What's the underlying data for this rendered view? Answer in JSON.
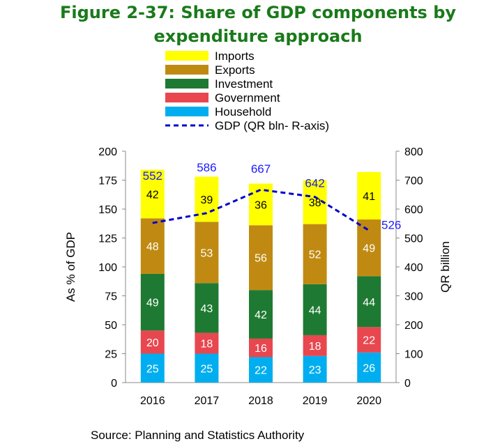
{
  "title_line1": "Figure 2-37: Share of GDP components by",
  "title_line2": "expenditure approach",
  "source": "Source: Planning and Statistics Authority",
  "chart_data": {
    "type": "bar",
    "stacked": true,
    "categories": [
      "2016",
      "2017",
      "2018",
      "2019",
      "2020"
    ],
    "series": [
      {
        "name": "Household",
        "color": "#00aeef",
        "label_color": "#ffffff",
        "values": [
          25,
          25,
          22,
          23,
          26
        ]
      },
      {
        "name": "Government",
        "color": "#e8474f",
        "label_color": "#ffffff",
        "values": [
          20,
          18,
          16,
          18,
          22
        ]
      },
      {
        "name": "Investment",
        "color": "#1e7a32",
        "label_color": "#ffffff",
        "values": [
          49,
          43,
          42,
          44,
          44
        ]
      },
      {
        "name": "Exports",
        "color": "#c08a12",
        "label_color": "#ffffff",
        "values": [
          48,
          53,
          56,
          52,
          49
        ]
      },
      {
        "name": "Imports",
        "color": "#ffff00",
        "label_color": "#000000",
        "values": [
          42,
          39,
          36,
          38,
          41
        ]
      }
    ],
    "line_series": {
      "name": "GDP (QR bln- R-axis)",
      "color": "#0000cc",
      "axis": "right",
      "values": [
        552,
        586,
        667,
        642,
        526
      ]
    },
    "legend": [
      "Imports",
      "Exports",
      "Investment",
      "Government",
      "Household",
      "GDP (QR bln- R-axis)"
    ],
    "ylabel": "As % of GDP",
    "y2label": "QR billion",
    "ylim": [
      0,
      200
    ],
    "y2lim": [
      0,
      800
    ],
    "yticks": [
      0,
      25,
      50,
      75,
      100,
      125,
      150,
      175,
      200
    ],
    "y2ticks": [
      0,
      100,
      200,
      300,
      400,
      500,
      600,
      700,
      800
    ]
  }
}
